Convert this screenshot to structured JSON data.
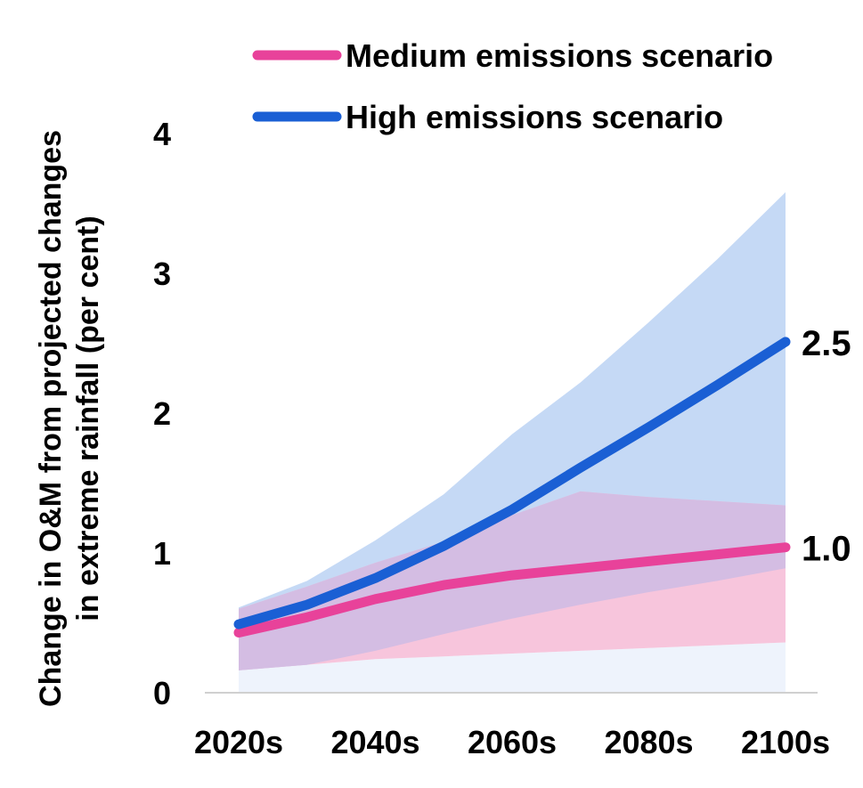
{
  "chart_data": {
    "type": "area",
    "title": "",
    "ylabel_lines": [
      "Change in O&M from projected changes",
      "in extreme rainfall (per cent)"
    ],
    "xlabel": "",
    "x": [
      2020,
      2030,
      2040,
      2050,
      2060,
      2070,
      2080,
      2090,
      2100
    ],
    "x_tick_values": [
      2020,
      2040,
      2060,
      2080,
      2100
    ],
    "x_tick_labels": [
      "2020s",
      "2040s",
      "2060s",
      "2080s",
      "2100s"
    ],
    "y_tick_values": [
      0,
      1,
      2,
      3,
      4
    ],
    "y_tick_labels": [
      "0",
      "1",
      "2",
      "3",
      "4"
    ],
    "xlim": [
      2020,
      2100
    ],
    "ylim": [
      0,
      4
    ],
    "grid": false,
    "legend_position": "top",
    "series": [
      {
        "name": "Medium emissions scenario",
        "color": "#e8429a",
        "band_color": "#f7c5dc",
        "values": [
          0.43,
          0.54,
          0.67,
          0.77,
          0.84,
          0.89,
          0.94,
          0.99,
          1.04
        ],
        "lower": [
          0.16,
          0.2,
          0.24,
          0.26,
          0.28,
          0.3,
          0.32,
          0.34,
          0.36
        ],
        "upper": [
          0.6,
          0.76,
          0.93,
          1.08,
          1.27,
          1.44,
          1.4,
          1.37,
          1.34
        ],
        "end_label": "1.0"
      },
      {
        "name": "High emissions scenario",
        "color": "#1a5fd4",
        "band_color": "#c5d9f5",
        "values": [
          0.49,
          0.63,
          0.82,
          1.05,
          1.31,
          1.61,
          1.9,
          2.2,
          2.51
        ],
        "lower": [
          0.16,
          0.2,
          0.3,
          0.42,
          0.53,
          0.63,
          0.72,
          0.8,
          0.89
        ],
        "upper": [
          0.61,
          0.8,
          1.09,
          1.42,
          1.85,
          2.22,
          2.65,
          3.1,
          3.58
        ],
        "end_label": "2.5"
      }
    ],
    "colors": {
      "overlap": "#d4bde3",
      "bottom_band": "#eef3fc",
      "axis": "#d0d0d0"
    }
  }
}
